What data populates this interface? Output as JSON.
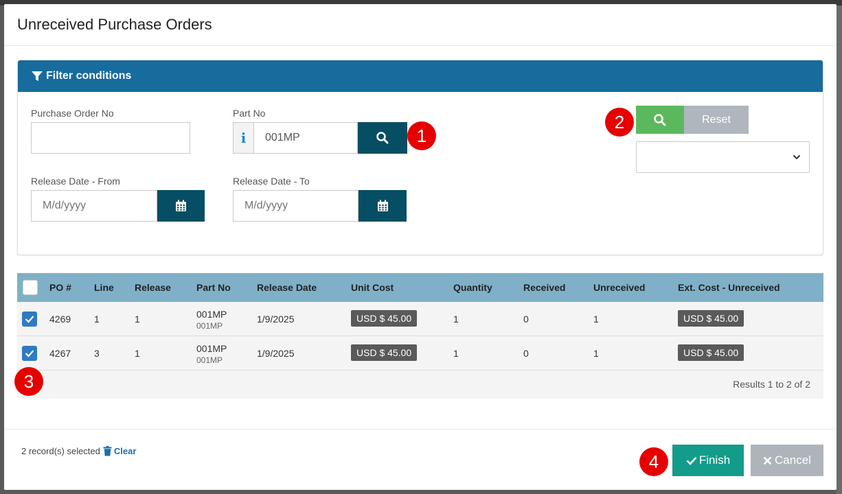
{
  "modal": {
    "title": "Unreceived Purchase Orders"
  },
  "filter": {
    "header": "Filter conditions",
    "po_label": "Purchase Order No",
    "po_value": "",
    "part_label": "Part No",
    "part_info": "i",
    "part_value": "001MP",
    "release_from_label": "Release Date - From",
    "release_from_placeholder": "M/d/yyyy",
    "release_to_label": "Release Date - To",
    "release_to_placeholder": "M/d/yyyy",
    "reset_label": "Reset",
    "select_value": ""
  },
  "callouts": [
    "1",
    "2",
    "3",
    "4"
  ],
  "table": {
    "headers": [
      "PO #",
      "Line",
      "Release",
      "Part No",
      "Release Date",
      "Unit Cost",
      "Quantity",
      "Received",
      "Unreceived",
      "Ext. Cost - Unreceived"
    ],
    "rows": [
      {
        "po": "4269",
        "line": "1",
        "release": "1",
        "part": "001MP",
        "part_sub": "001MP",
        "date": "1/9/2025",
        "unit_cost": "USD $ 45.00",
        "qty": "1",
        "received": "0",
        "unreceived": "1",
        "ext_cost": "USD $ 45.00"
      },
      {
        "po": "4267",
        "line": "3",
        "release": "1",
        "part": "001MP",
        "part_sub": "001MP",
        "date": "1/9/2025",
        "unit_cost": "USD $ 45.00",
        "qty": "1",
        "received": "0",
        "unreceived": "1",
        "ext_cost": "USD $ 45.00"
      }
    ],
    "results": "Results 1 to 2 of 2"
  },
  "footer": {
    "selected_text": "2 record(s) selected",
    "clear_label": "Clear",
    "finish_label": "Finish",
    "cancel_label": "Cancel"
  }
}
